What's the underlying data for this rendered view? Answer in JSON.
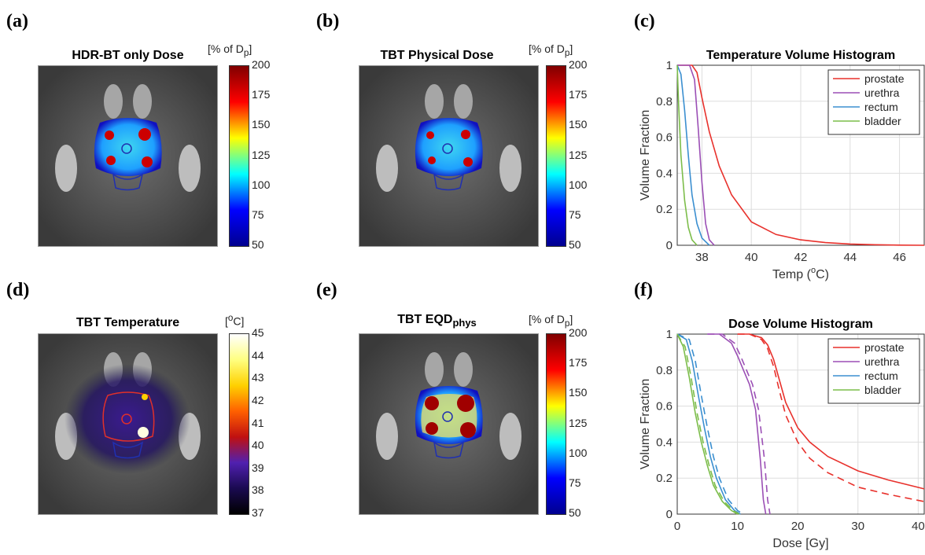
{
  "panels": {
    "a": {
      "letter": "(a)",
      "title": "HDR-BT only Dose",
      "unit": "[% of D",
      "unit_sub": "p",
      "unit_end": "]",
      "ticks": [
        "200",
        "175",
        "150",
        "125",
        "100",
        "75",
        "50"
      ]
    },
    "b": {
      "letter": "(b)",
      "title": "TBT Physical Dose",
      "unit": "[% of D",
      "unit_sub": "p",
      "unit_end": "]",
      "ticks": [
        "200",
        "175",
        "150",
        "125",
        "100",
        "75",
        "50"
      ]
    },
    "c": {
      "letter": "(c)"
    },
    "d": {
      "letter": "(d)",
      "title": "TBT Temperature",
      "unit": "[",
      "unit_sup": "o",
      "unit_end": "C]",
      "ticks": [
        "45",
        "44",
        "43",
        "42",
        "41",
        "40",
        "39",
        "38",
        "37"
      ]
    },
    "e": {
      "letter": "(e)",
      "title": "TBT EQD",
      "title_sub": "phys",
      "unit": "[% of D",
      "unit_sub": "p",
      "unit_end": "]",
      "ticks": [
        "200",
        "175",
        "150",
        "125",
        "100",
        "75",
        "50"
      ]
    },
    "f": {
      "letter": "(f)"
    }
  },
  "colors": {
    "prostate": "#e8312c",
    "urethra": "#9b4fb5",
    "rectum": "#3b8fd0",
    "bladder": "#7cbd4a"
  },
  "chart_data": [
    {
      "type": "line",
      "title": "Temperature Volume Histogram",
      "xlabel": "Temp (",
      "xlabel_sup": "o",
      "xlabel_end": "C)",
      "ylabel": "Volume Fraction",
      "xlim": [
        37,
        47
      ],
      "ylim": [
        0,
        1
      ],
      "xticks": [
        38,
        40,
        42,
        44,
        46
      ],
      "yticks": [
        0,
        0.2,
        0.4,
        0.6,
        0.8,
        1
      ],
      "grid": true,
      "legend": "top-right",
      "series": [
        {
          "name": "prostate",
          "color": "#e8312c",
          "x": [
            37,
            37.6,
            37.8,
            38.0,
            38.3,
            38.7,
            39.2,
            40.0,
            41.0,
            42.0,
            43.0,
            44.0,
            45.0,
            46.0,
            47.0
          ],
          "y": [
            1,
            1,
            0.96,
            0.82,
            0.63,
            0.44,
            0.28,
            0.13,
            0.06,
            0.03,
            0.015,
            0.007,
            0.003,
            0.001,
            0
          ]
        },
        {
          "name": "urethra",
          "color": "#9b4fb5",
          "x": [
            37,
            37.5,
            37.7,
            37.85,
            38.0,
            38.15,
            38.3,
            38.5
          ],
          "y": [
            1,
            1,
            0.92,
            0.65,
            0.35,
            0.12,
            0.03,
            0
          ]
        },
        {
          "name": "rectum",
          "color": "#3b8fd0",
          "x": [
            37,
            37.15,
            37.3,
            37.45,
            37.6,
            37.8,
            38.0,
            38.3
          ],
          "y": [
            1,
            0.95,
            0.75,
            0.5,
            0.28,
            0.12,
            0.04,
            0
          ]
        },
        {
          "name": "bladder",
          "color": "#7cbd4a",
          "x": [
            37,
            37.05,
            37.15,
            37.3,
            37.45,
            37.6,
            37.8
          ],
          "y": [
            1,
            0.8,
            0.5,
            0.25,
            0.1,
            0.03,
            0
          ]
        }
      ]
    },
    {
      "type": "line",
      "title": "Dose Volume Histogram",
      "xlabel": "Dose [Gy]",
      "ylabel": "Volume Fraction",
      "xlim": [
        0,
        41
      ],
      "ylim": [
        0,
        1
      ],
      "xticks": [
        0,
        10,
        20,
        30,
        40
      ],
      "yticks": [
        0,
        0.2,
        0.4,
        0.6,
        0.8,
        1
      ],
      "grid": true,
      "legend": "top-right",
      "series": [
        {
          "name": "prostate",
          "color": "#e8312c",
          "dash": false,
          "x": [
            10,
            12,
            14,
            15,
            16,
            17,
            18,
            20,
            22,
            25,
            30,
            35,
            41
          ],
          "y": [
            1,
            1,
            0.98,
            0.94,
            0.86,
            0.74,
            0.62,
            0.48,
            0.4,
            0.32,
            0.24,
            0.19,
            0.14
          ]
        },
        {
          "name": "prostate",
          "color": "#e8312c",
          "dash": true,
          "x": [
            10,
            12,
            14,
            15,
            16,
            17,
            18,
            20,
            22,
            25,
            30,
            35,
            41
          ],
          "y": [
            1,
            1,
            0.97,
            0.92,
            0.82,
            0.68,
            0.55,
            0.4,
            0.31,
            0.23,
            0.15,
            0.11,
            0.07
          ]
        },
        {
          "name": "urethra",
          "color": "#9b4fb5",
          "dash": false,
          "x": [
            5,
            7,
            9,
            10,
            11,
            12,
            13,
            13.8,
            14.3,
            14.7
          ],
          "y": [
            1,
            1,
            0.95,
            0.88,
            0.8,
            0.72,
            0.58,
            0.3,
            0.08,
            0
          ]
        },
        {
          "name": "urethra",
          "color": "#9b4fb5",
          "dash": true,
          "x": [
            5,
            7.5,
            9.5,
            10.5,
            11.5,
            12.5,
            13.5,
            14.5,
            15,
            15.4
          ],
          "y": [
            1,
            1,
            0.95,
            0.88,
            0.8,
            0.72,
            0.58,
            0.3,
            0.08,
            0
          ]
        },
        {
          "name": "rectum",
          "color": "#3b8fd0",
          "dash": false,
          "x": [
            0,
            1.5,
            2.5,
            3.5,
            4.5,
            5.5,
            6.5,
            8,
            9.5,
            10.5
          ],
          "y": [
            1,
            0.97,
            0.85,
            0.66,
            0.48,
            0.32,
            0.2,
            0.08,
            0.02,
            0
          ]
        },
        {
          "name": "rectum",
          "color": "#3b8fd0",
          "dash": true,
          "x": [
            0,
            2,
            3,
            4,
            5,
            6,
            7,
            8.5,
            10,
            11
          ],
          "y": [
            1,
            0.97,
            0.85,
            0.66,
            0.48,
            0.32,
            0.2,
            0.08,
            0.02,
            0
          ]
        },
        {
          "name": "bladder",
          "color": "#7cbd4a",
          "dash": false,
          "x": [
            0,
            1,
            2,
            3,
            4,
            5,
            6,
            7.5,
            9,
            10
          ],
          "y": [
            1,
            0.93,
            0.76,
            0.56,
            0.4,
            0.27,
            0.16,
            0.07,
            0.02,
            0
          ]
        },
        {
          "name": "bladder",
          "color": "#7cbd4a",
          "dash": true,
          "x": [
            0,
            1.3,
            2.3,
            3.3,
            4.3,
            5.3,
            6.3,
            7.8,
            9.3,
            10.3
          ],
          "y": [
            1,
            0.93,
            0.76,
            0.56,
            0.4,
            0.27,
            0.16,
            0.07,
            0.02,
            0
          ]
        }
      ]
    }
  ]
}
